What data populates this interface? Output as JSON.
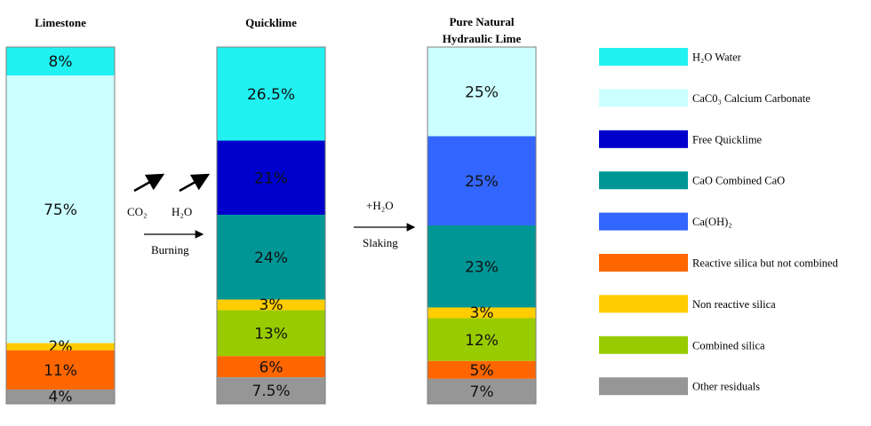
{
  "colors": {
    "h2o": "#21f1f1",
    "caco3": "#ccffff",
    "free_quicklime": "#0000cc",
    "combined_cao": "#009696",
    "caoh2": "#3366ff",
    "reactive_silica": "#ff6600",
    "non_reactive_silica": "#ffcc00",
    "combined_silica": "#99cc00",
    "other": "#969696"
  },
  "chart_data": {
    "type": "bar",
    "stacked": true,
    "unit": "%",
    "legend_placement": "right",
    "legend": [
      {
        "key": "h2o",
        "label": "H₂O Water"
      },
      {
        "key": "caco3",
        "label": "CaC0₃ Calcium Carbonate"
      },
      {
        "key": "free_quicklime",
        "label": "Free Quicklime"
      },
      {
        "key": "combined_cao",
        "label": "CaO Combined CaO"
      },
      {
        "key": "caoh2",
        "label": "Ca(OH)₂"
      },
      {
        "key": "reactive_silica",
        "label": "Reactive silica but not combined"
      },
      {
        "key": "non_reactive_silica",
        "label": "Non reactive silica"
      },
      {
        "key": "combined_silica",
        "label": "Combined silica"
      },
      {
        "key": "other",
        "label": "Other residuals"
      }
    ],
    "columns": [
      {
        "title": [
          "Limestone"
        ],
        "segments": [
          {
            "key": "h2o",
            "value": 8,
            "label": "8%"
          },
          {
            "key": "caco3",
            "value": 75,
            "label": "75%"
          },
          {
            "key": "non_reactive_silica",
            "value": 2,
            "label": "2%"
          },
          {
            "key": "reactive_silica",
            "value": 11,
            "label": "11%"
          },
          {
            "key": "other",
            "value": 4,
            "label": "4%"
          }
        ]
      },
      {
        "title": [
          "Quicklime"
        ],
        "segments": [
          {
            "key": "h2o",
            "value": 26.5,
            "label": "26.5%"
          },
          {
            "key": "free_quicklime",
            "value": 21,
            "label": "21%"
          },
          {
            "key": "combined_cao",
            "value": 24,
            "label": "24%"
          },
          {
            "key": "non_reactive_silica",
            "value": 3,
            "label": "3%"
          },
          {
            "key": "combined_silica",
            "value": 13,
            "label": "13%"
          },
          {
            "key": "reactive_silica",
            "value": 6,
            "label": "6%"
          },
          {
            "key": "other",
            "value": 7.5,
            "label": "7.5%"
          }
        ]
      },
      {
        "title": [
          "Pure Natural",
          "Hydraulic Lime"
        ],
        "segments": [
          {
            "key": "caco3",
            "value": 25,
            "label": "25%"
          },
          {
            "key": "caoh2",
            "value": 25,
            "label": "25%"
          },
          {
            "key": "combined_cao",
            "value": 23,
            "label": "23%"
          },
          {
            "key": "non_reactive_silica",
            "value": 3,
            "label": "3%"
          },
          {
            "key": "combined_silica",
            "value": 12,
            "label": "12%"
          },
          {
            "key": "reactive_silica",
            "value": 5,
            "label": "5%"
          },
          {
            "key": "other",
            "value": 7,
            "label": "7%"
          }
        ]
      }
    ],
    "transitions": [
      {
        "gas_labels": [
          "CO₂",
          "H₂O"
        ],
        "arrow_label": "Burning"
      },
      {
        "top_label": "+H₂O",
        "arrow_label": "Slaking"
      }
    ]
  }
}
